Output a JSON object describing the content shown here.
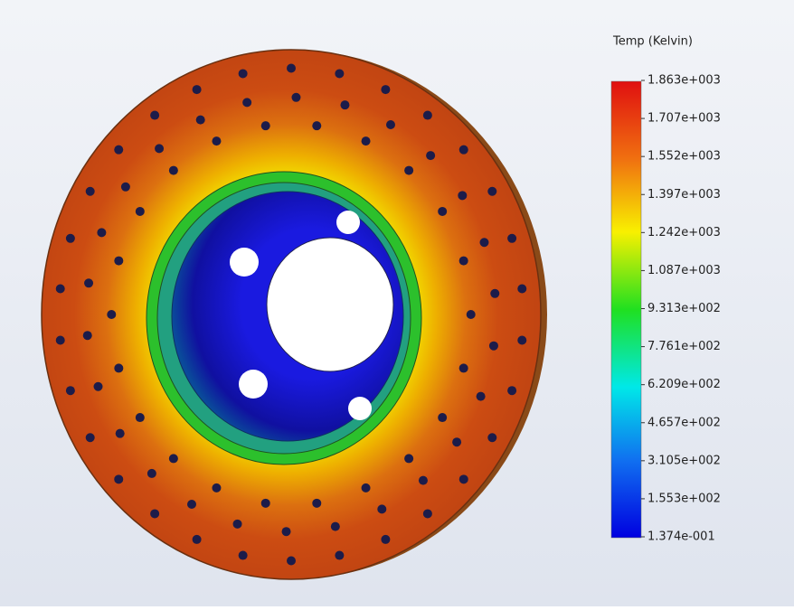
{
  "legend": {
    "title": "Temp (Kelvin)",
    "labels": [
      "1.863e+003",
      "1.707e+003",
      "1.552e+003",
      "1.397e+003",
      "1.242e+003",
      "1.087e+003",
      "9.313e+002",
      "7.761e+002",
      "6.209e+002",
      "4.657e+002",
      "3.105e+002",
      "1.553e+002",
      "1.374e-001"
    ]
  }
}
